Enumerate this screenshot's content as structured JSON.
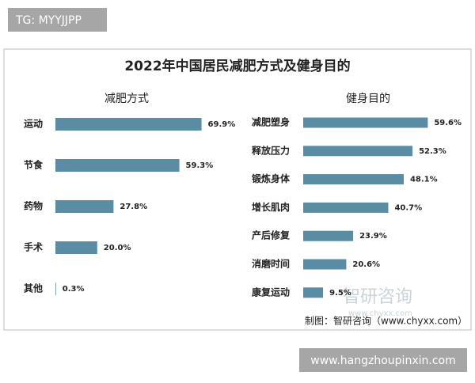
{
  "tag": "TG: MYYJJPP",
  "title": "2022年中国居民减肥方式及健身目的",
  "watermark": {
    "name": "智研咨询",
    "url": "www.chyxx.com"
  },
  "credit": "制图：智研咨询（www.chyxx.com）",
  "footer": "www.hangzhoupinxin.com",
  "chart_data": [
    {
      "type": "bar",
      "orientation": "horizontal",
      "title": "减肥方式",
      "color": "#5a8ca4",
      "categories": [
        "运动",
        "节食",
        "药物",
        "手术",
        "其他"
      ],
      "values": [
        69.9,
        59.3,
        27.8,
        20.0,
        0.3
      ],
      "value_labels": [
        "69.9%",
        "59.3%",
        "27.8%",
        "20.0%",
        "0.3%"
      ]
    },
    {
      "type": "bar",
      "orientation": "horizontal",
      "title": "健身目的",
      "color": "#5a8ca4",
      "categories": [
        "减肥塑身",
        "释放压力",
        "锻炼身体",
        "增长肌肉",
        "产后修复",
        "消磨时间",
        "康复运动"
      ],
      "values": [
        59.6,
        52.3,
        48.1,
        40.7,
        23.9,
        20.6,
        9.5
      ],
      "value_labels": [
        "59.6%",
        "52.3%",
        "48.1%",
        "40.7%",
        "23.9%",
        "20.6%",
        "9.5%"
      ]
    }
  ]
}
